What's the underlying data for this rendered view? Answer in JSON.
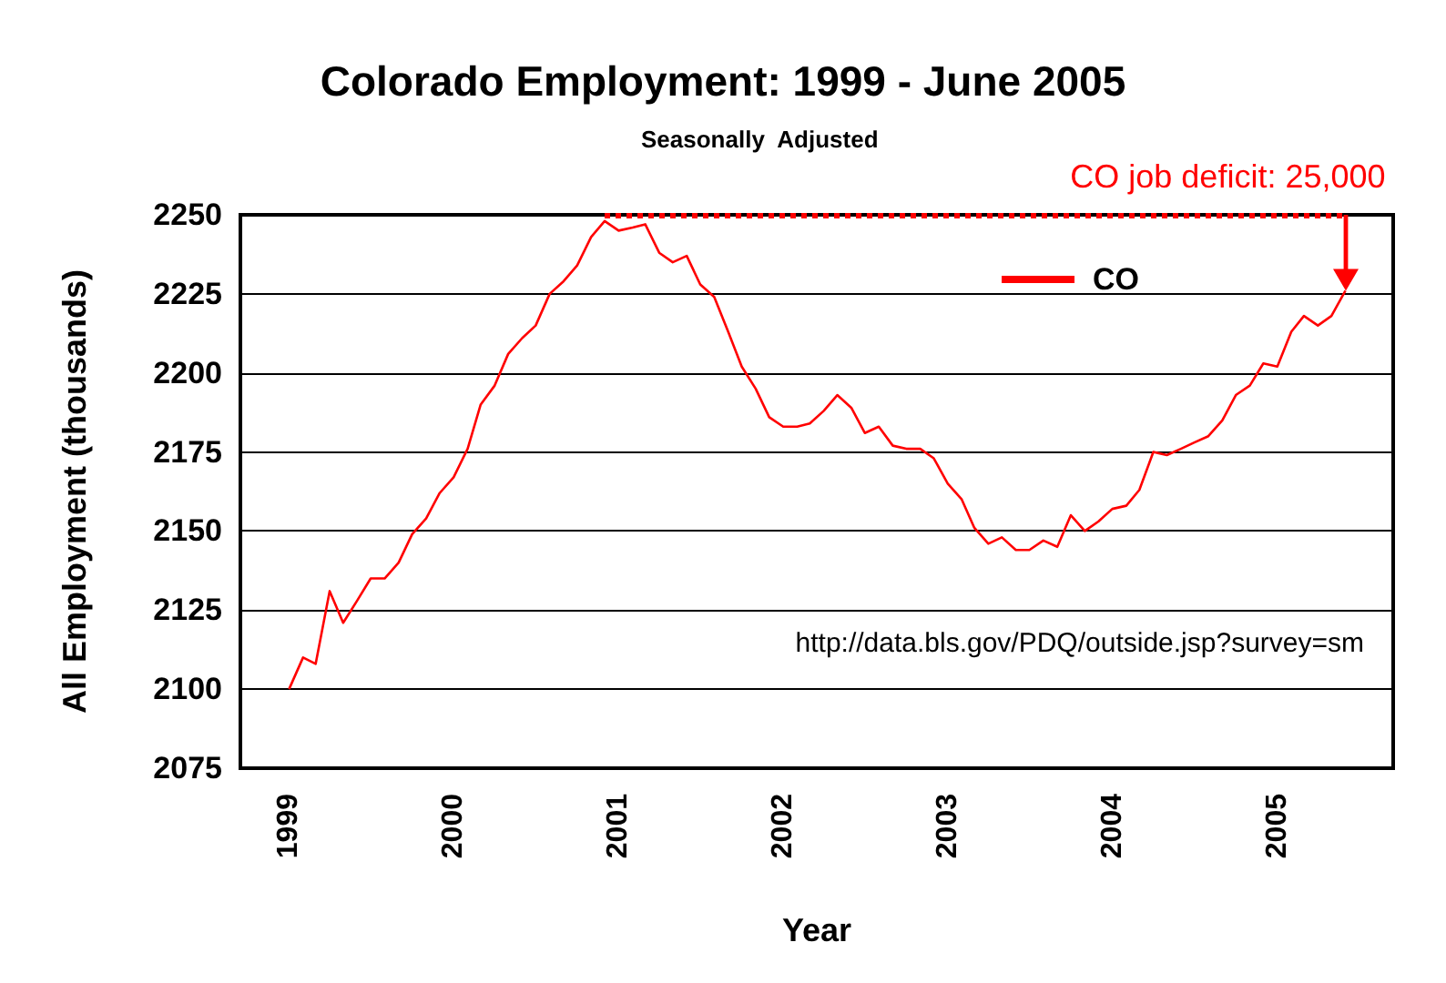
{
  "chart_data": {
    "type": "line",
    "title": "Colorado Employment: 1999 - June 2005",
    "subtitle": "Seasonally  Adjusted",
    "xlabel": "Year",
    "ylabel": "All Employment (thousands)",
    "x": [
      "1999-01",
      "1999-02",
      "1999-03",
      "1999-04",
      "1999-05",
      "1999-06",
      "1999-07",
      "1999-08",
      "1999-09",
      "1999-10",
      "1999-11",
      "1999-12",
      "2000-01",
      "2000-02",
      "2000-03",
      "2000-04",
      "2000-05",
      "2000-06",
      "2000-07",
      "2000-08",
      "2000-09",
      "2000-10",
      "2000-11",
      "2000-12",
      "2001-01",
      "2001-02",
      "2001-03",
      "2001-04",
      "2001-05",
      "2001-06",
      "2001-07",
      "2001-08",
      "2001-09",
      "2001-10",
      "2001-11",
      "2001-12",
      "2002-01",
      "2002-02",
      "2002-03",
      "2002-04",
      "2002-05",
      "2002-06",
      "2002-07",
      "2002-08",
      "2002-09",
      "2002-10",
      "2002-11",
      "2002-12",
      "2003-01",
      "2003-02",
      "2003-03",
      "2003-04",
      "2003-05",
      "2003-06",
      "2003-07",
      "2003-08",
      "2003-09",
      "2003-10",
      "2003-11",
      "2003-12",
      "2004-01",
      "2004-02",
      "2004-03",
      "2004-04",
      "2004-05",
      "2004-06",
      "2004-07",
      "2004-08",
      "2004-09",
      "2004-10",
      "2004-11",
      "2004-12",
      "2005-01",
      "2005-02",
      "2005-03",
      "2005-04",
      "2005-05",
      "2005-06"
    ],
    "series": [
      {
        "name": "CO",
        "color": "#ff0000",
        "values": [
          2100,
          2110,
          2108,
          2131,
          2121,
          2128,
          2135,
          2135,
          2140,
          2149,
          2154,
          2162,
          2167,
          2176,
          2190,
          2196,
          2206,
          2211,
          2215,
          2225,
          2229,
          2234,
          2243,
          2248,
          2245,
          2246,
          2247,
          2238,
          2235,
          2237,
          2228,
          2224,
          2213,
          2202,
          2195,
          2186,
          2183,
          2183,
          2184,
          2188,
          2193,
          2189,
          2181,
          2183,
          2177,
          2176,
          2176,
          2173,
          2165,
          2160,
          2151,
          2146,
          2148,
          2144,
          2144,
          2147,
          2145,
          2155,
          2150,
          2153,
          2157,
          2158,
          2163,
          2175,
          2174,
          2176,
          2178,
          2180,
          2185,
          2193,
          2196,
          2203,
          2202,
          2213,
          2218,
          2215,
          2218,
          2226
        ]
      }
    ],
    "xlim": [
      "1998-09-15",
      "2005-09-15"
    ],
    "xticks": [
      "1999",
      "2000",
      "2001",
      "2002",
      "2003",
      "2004",
      "2005"
    ],
    "ylim": [
      2075,
      2250
    ],
    "yticks": [
      2075,
      2100,
      2125,
      2150,
      2175,
      2200,
      2225,
      2250
    ],
    "grid": "y",
    "legend": "top",
    "marker": "none",
    "line_style": "solid",
    "ref_lines": [
      {
        "axis": "y",
        "value": 2250,
        "color": "#ff0000",
        "line_style": "dotted"
      }
    ],
    "annotations": [
      {
        "text": "CO job deficit: 25,000",
        "x": "2005-06",
        "y": 2250
      },
      "http://data.bls.gov/PDQ/outside.jsp?survey=sm"
    ]
  }
}
